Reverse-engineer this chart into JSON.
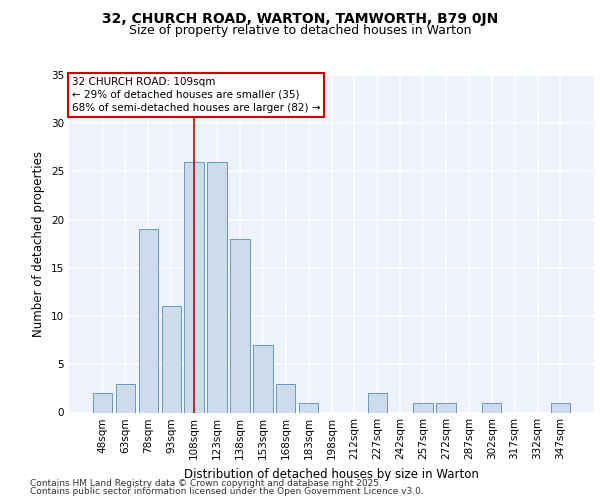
{
  "title1": "32, CHURCH ROAD, WARTON, TAMWORTH, B79 0JN",
  "title2": "Size of property relative to detached houses in Warton",
  "xlabel": "Distribution of detached houses by size in Warton",
  "ylabel": "Number of detached properties",
  "categories": [
    "48sqm",
    "63sqm",
    "78sqm",
    "93sqm",
    "108sqm",
    "123sqm",
    "138sqm",
    "153sqm",
    "168sqm",
    "183sqm",
    "198sqm",
    "212sqm",
    "227sqm",
    "242sqm",
    "257sqm",
    "272sqm",
    "287sqm",
    "302sqm",
    "317sqm",
    "332sqm",
    "347sqm"
  ],
  "values": [
    2,
    3,
    19,
    11,
    26,
    26,
    18,
    7,
    3,
    1,
    0,
    0,
    2,
    0,
    1,
    1,
    0,
    1,
    0,
    0,
    1
  ],
  "bar_color": "#ccdcec",
  "bar_edge_color": "#6699bb",
  "background_color": "#eef2fb",
  "grid_color": "#ffffff",
  "red_line_index": 4,
  "red_line_color": "#cc0000",
  "annotation_text": "32 CHURCH ROAD: 109sqm\n← 29% of detached houses are smaller (35)\n68% of semi-detached houses are larger (82) →",
  "annotation_box_facecolor": "#ffffff",
  "annotation_box_edgecolor": "#cc0000",
  "ylim": [
    0,
    35
  ],
  "yticks": [
    0,
    5,
    10,
    15,
    20,
    25,
    30,
    35
  ],
  "footnote1": "Contains HM Land Registry data © Crown copyright and database right 2025.",
  "footnote2": "Contains public sector information licensed under the Open Government Licence v3.0.",
  "title_fontsize": 10,
  "subtitle_fontsize": 9,
  "axis_label_fontsize": 8.5,
  "tick_fontsize": 7.5,
  "annotation_fontsize": 7.5,
  "footnote_fontsize": 6.5
}
